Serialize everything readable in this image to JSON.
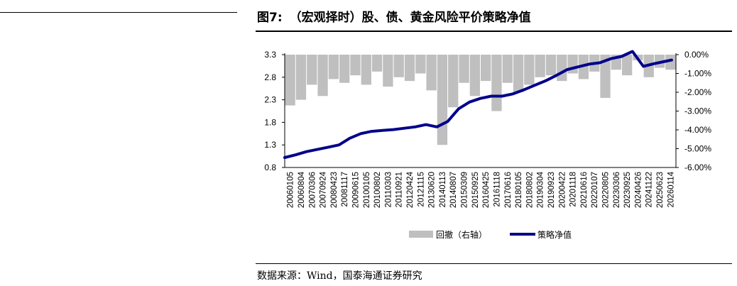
{
  "header": {
    "figure_label": "图7:",
    "title": "（宏观择时）股、债、黄金风险平价策略净值"
  },
  "footer": {
    "source": "数据来源：Wind，国泰海通证券研究"
  },
  "chart_data": {
    "type": "line",
    "title": "",
    "categories": [
      "20060105",
      "20060804",
      "20070306",
      "20070924",
      "20080423",
      "20081117",
      "20090615",
      "20100105",
      "20100802",
      "20110303",
      "20110921",
      "20120424",
      "20121115",
      "20130620",
      "20140113",
      "20140807",
      "20150309",
      "20150925",
      "20160425",
      "20161118",
      "20170616",
      "20180105",
      "20180802",
      "20190304",
      "20190923",
      "20200422",
      "20201118",
      "20210616",
      "20220107",
      "20220805",
      "20230306",
      "20230925",
      "20240426",
      "20241122",
      "20250623",
      "20260114"
    ],
    "y_left": {
      "ticks": [
        "0.8",
        "1.3",
        "1.8",
        "2.3",
        "2.8",
        "3.3"
      ],
      "ylim": [
        0.8,
        3.3
      ]
    },
    "y_right": {
      "ticks": [
        "0.00%",
        "-1.00%",
        "-2.00%",
        "-3.00%",
        "-4.00%",
        "-5.00%",
        "-6.00%"
      ],
      "ylim": [
        -6.0,
        0.0
      ]
    },
    "colors": {
      "nav": "#00008B",
      "drawdown": "#BFBFBF"
    },
    "legend_position": "bottom",
    "series": [
      {
        "name": "回撤（右轴）",
        "kind": "area",
        "axis": "right",
        "x": [
          0,
          1,
          2,
          3,
          4,
          5,
          6,
          7,
          8,
          9,
          10,
          11,
          12,
          13,
          14,
          15,
          16,
          17,
          18,
          19,
          20,
          21,
          22,
          23,
          24,
          25,
          26,
          27,
          28,
          29,
          30,
          31,
          32,
          33,
          34,
          35
        ],
        "values": [
          -2.7,
          -2.4,
          -1.6,
          -2.2,
          -1.3,
          -1.5,
          -1.1,
          -1.6,
          -0.9,
          -1.7,
          -1.2,
          -1.4,
          -1.0,
          -1.9,
          -4.8,
          -2.8,
          -1.5,
          -2.2,
          -1.4,
          -3.0,
          -1.5,
          -2.0,
          -1.6,
          -1.2,
          -1.1,
          -1.4,
          -1.0,
          -1.3,
          -0.9,
          -2.3,
          -0.8,
          -1.1,
          -0.3,
          -1.2,
          -0.7,
          -0.8
        ]
      },
      {
        "name": "策略净值",
        "kind": "line",
        "axis": "left",
        "x": [
          0,
          1,
          2,
          3,
          4,
          5,
          6,
          7,
          8,
          9,
          10,
          11,
          12,
          13,
          14,
          15,
          16,
          17,
          18,
          19,
          20,
          21,
          22,
          23,
          24,
          25,
          26,
          27,
          28,
          29,
          30,
          31,
          32,
          33,
          34,
          35,
          35.6
        ],
        "values": [
          1.02,
          1.08,
          1.15,
          1.2,
          1.25,
          1.3,
          1.45,
          1.55,
          1.6,
          1.62,
          1.64,
          1.67,
          1.7,
          1.75,
          1.7,
          1.82,
          2.1,
          2.25,
          2.33,
          2.38,
          2.38,
          2.43,
          2.52,
          2.62,
          2.72,
          2.84,
          2.97,
          3.03,
          3.09,
          3.12,
          3.21,
          3.26,
          3.37,
          3.04,
          3.1,
          3.15,
          3.18
        ]
      }
    ]
  }
}
